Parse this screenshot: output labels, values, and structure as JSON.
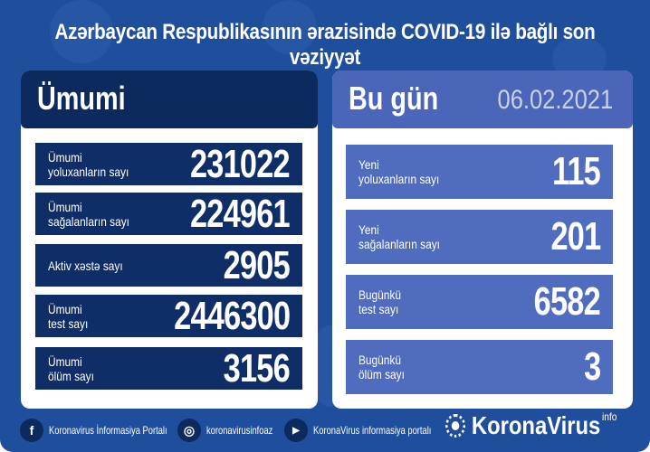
{
  "title": "Azərbaycan Respublikasının ərazisində COVID-19 ilə bağlı son vəziyyət",
  "colors": {
    "background": "#1f4f9c",
    "left_dark": "#0f2e68",
    "right_light": "#4f6cbf"
  },
  "left": {
    "heading": "Ümumi",
    "rows": [
      {
        "label": "Ümumi\nyoluxanların sayı",
        "value": "231022"
      },
      {
        "label": "Ümumi\nsağalanların sayı",
        "value": "224961"
      },
      {
        "label": "Aktiv xəstə sayı",
        "value": "2905"
      },
      {
        "label": "Ümumi\ntest sayı",
        "value": "2446300"
      },
      {
        "label": "Ümumi\nölüm sayı",
        "value": "3156"
      }
    ]
  },
  "right": {
    "heading": "Bu gün",
    "date": "06.02.2021",
    "rows": [
      {
        "label": "Yeni\nyoluxanların sayı",
        "value": "115"
      },
      {
        "label": "Yeni\nsağalanların sayı",
        "value": "201"
      },
      {
        "label": "Bugünkü\ntest sayı",
        "value": "6582"
      },
      {
        "label": "Bugünkü\nölüm sayı",
        "value": "3"
      }
    ]
  },
  "footer": {
    "facebook": "Koronavirus İnformasiya Portalı",
    "instagram": "koronavirusinfoaz",
    "youtube": "KoronaVirus informasiya portalı",
    "logo": "KoronaVirus",
    "logo_sup": "info"
  },
  "icons": {
    "facebook": "facebook-icon",
    "instagram": "instagram-icon",
    "youtube": "youtube-icon",
    "logo": "virus-sun-icon"
  }
}
